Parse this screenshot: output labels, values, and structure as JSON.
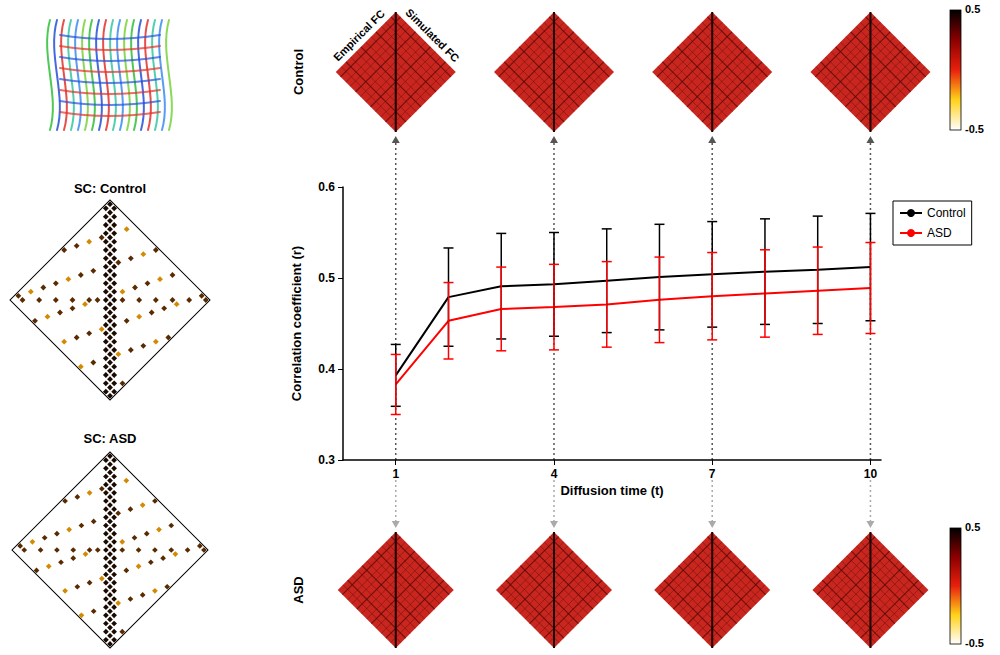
{
  "chart_data": {
    "type": "line",
    "x": [
      1,
      2,
      3,
      4,
      5,
      6,
      7,
      8,
      9,
      10
    ],
    "series": [
      {
        "name": "Control",
        "color": "#000000",
        "values": [
          0.393,
          0.479,
          0.491,
          0.493,
          0.497,
          0.501,
          0.504,
          0.507,
          0.509,
          0.512
        ],
        "errors": [
          0.034,
          0.054,
          0.058,
          0.057,
          0.057,
          0.058,
          0.058,
          0.058,
          0.059,
          0.059
        ]
      },
      {
        "name": "ASD",
        "color": "#ff0000",
        "values": [
          0.383,
          0.453,
          0.466,
          0.468,
          0.471,
          0.476,
          0.48,
          0.483,
          0.486,
          0.489
        ],
        "errors": [
          0.033,
          0.042,
          0.046,
          0.047,
          0.047,
          0.047,
          0.048,
          0.048,
          0.048,
          0.05
        ]
      }
    ],
    "xlabel": "Diffusion time (t)",
    "ylabel": "Correlation coefficient (r)",
    "xlim": [
      0,
      10.2
    ],
    "xticks": [
      1,
      4,
      7,
      10
    ],
    "ylim": [
      0.3,
      0.6
    ],
    "yticks": [
      0.3,
      0.4,
      0.5,
      0.6
    ],
    "grid": false,
    "legend": "right",
    "line_style": "solid"
  },
  "fc_panels": {
    "rows": [
      "Control",
      "ASD"
    ],
    "halves": [
      "Empirical FC",
      "Simulated FC"
    ],
    "times": [
      1,
      4,
      7,
      10
    ],
    "colorbar": {
      "range": [
        -0.5,
        0.5
      ],
      "ticks": [
        0.5,
        -0.5
      ]
    }
  },
  "sc_panels": {
    "titles": [
      "SC: Control",
      "SC: ASD"
    ]
  }
}
